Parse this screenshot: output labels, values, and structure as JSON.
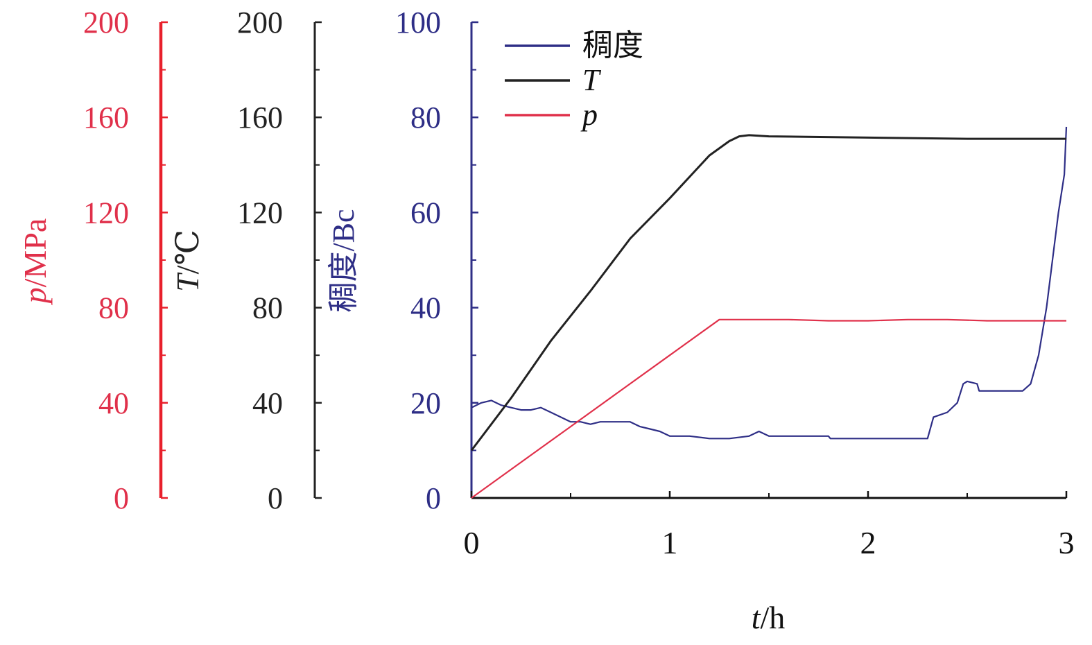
{
  "chart_data": {
    "type": "line",
    "xlabel": {
      "italic": "t",
      "rest": "/h"
    },
    "xlim": [
      0,
      3
    ],
    "x_ticks": [
      "0",
      "1",
      "2",
      "3"
    ],
    "colors": {
      "p": "#e0304a",
      "T": "#222222",
      "consistency": "#2e2e86",
      "p_axis": "#e8202c"
    },
    "axes": {
      "p": {
        "label_italic": "p",
        "label_rest": "/MPa",
        "ylim": [
          0,
          200
        ],
        "ticks": [
          "0",
          "40",
          "80",
          "120",
          "160",
          "200"
        ]
      },
      "T": {
        "label_italic": "T",
        "label_rest": "/℃",
        "ylim": [
          0,
          200
        ],
        "ticks": [
          "0",
          "40",
          "80",
          "120",
          "160",
          "200"
        ]
      },
      "consistency": {
        "label": "稠度/Bc",
        "ylim": [
          0,
          100
        ],
        "ticks": [
          "0",
          "20",
          "40",
          "60",
          "80",
          "100"
        ]
      }
    },
    "legend": {
      "placement": "top-left",
      "entries": [
        {
          "key": "consistency",
          "label": "稠度",
          "italic": false
        },
        {
          "key": "T",
          "label": "T",
          "italic": true
        },
        {
          "key": "p",
          "label": "p",
          "italic": true
        }
      ]
    },
    "series": [
      {
        "key": "consistency",
        "name": "稠度",
        "axis": "consistency",
        "x": [
          0,
          0.05,
          0.1,
          0.15,
          0.2,
          0.25,
          0.3,
          0.35,
          0.4,
          0.45,
          0.5,
          0.55,
          0.6,
          0.65,
          0.7,
          0.75,
          0.8,
          0.85,
          0.9,
          0.95,
          1.0,
          1.1,
          1.2,
          1.3,
          1.4,
          1.45,
          1.5,
          1.6,
          1.8,
          1.81,
          2.0,
          2.2,
          2.3,
          2.33,
          2.4,
          2.45,
          2.48,
          2.5,
          2.55,
          2.56,
          2.7,
          2.78,
          2.82,
          2.86,
          2.9,
          2.93,
          2.96,
          2.99,
          3.0
        ],
        "y": [
          19,
          20,
          20.5,
          19.5,
          19,
          18.5,
          18.5,
          19,
          18,
          17,
          16,
          16,
          15.5,
          16,
          16,
          16,
          16,
          15,
          14.5,
          14,
          13,
          13,
          12.5,
          12.5,
          13,
          14,
          13,
          13,
          13,
          12.5,
          12.5,
          12.5,
          12.5,
          17,
          18,
          20,
          24,
          24.5,
          24,
          22.5,
          22.5,
          22.5,
          24,
          30,
          40,
          50,
          60,
          68,
          78
        ]
      },
      {
        "key": "T",
        "name": "T",
        "axis": "T",
        "x": [
          0,
          0.2,
          0.4,
          0.6,
          0.8,
          1.0,
          1.2,
          1.3,
          1.35,
          1.4,
          1.5,
          2.0,
          2.5,
          3.0
        ],
        "y": [
          20,
          42,
          66,
          87,
          109,
          126,
          144,
          150,
          152,
          152.5,
          152,
          151.5,
          151,
          151
        ]
      },
      {
        "key": "p",
        "name": "p",
        "axis": "p",
        "x": [
          0,
          0.25,
          0.5,
          0.75,
          1.0,
          1.25,
          1.4,
          1.6,
          1.8,
          2.0,
          2.2,
          2.4,
          2.6,
          2.8,
          3.0
        ],
        "y": [
          0,
          15,
          30,
          45,
          60,
          75,
          75,
          75,
          74.5,
          74.5,
          75,
          75,
          74.5,
          74.5,
          74.5
        ]
      }
    ]
  }
}
